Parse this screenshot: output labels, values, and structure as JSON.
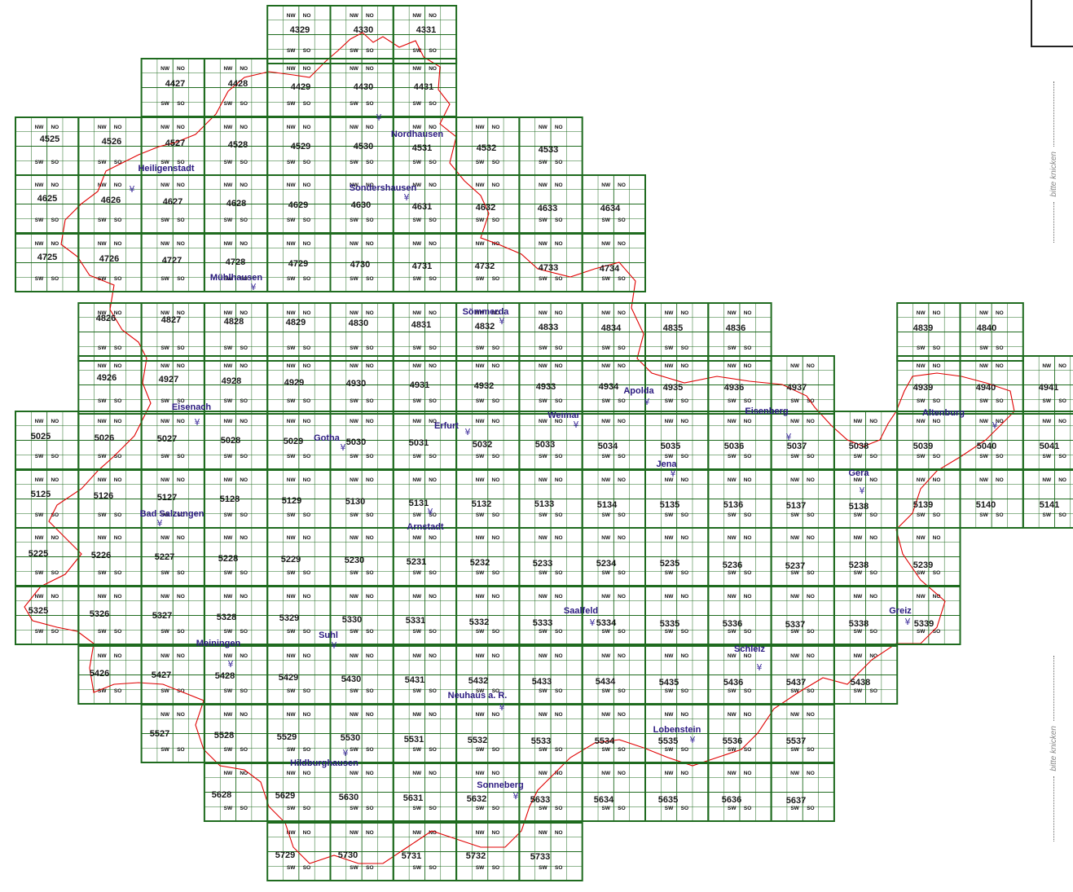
{
  "fold_label": "bitte knicken",
  "quadrant_labels": {
    "nw": "NW",
    "no": "NO",
    "sw": "SW",
    "so": "SO"
  },
  "colors": {
    "grid": "#1f6b1f",
    "border": "#e00000",
    "city_text": "#2b1a80",
    "sheet_text": "#1a1a1a"
  },
  "city_icon": "tower-icon",
  "sheets": [
    "4329",
    "4330",
    "4331",
    "4427",
    "4428",
    "4429",
    "4430",
    "4431",
    "4525",
    "4526",
    "4527",
    "4528",
    "4529",
    "4530",
    "4531",
    "4532",
    "4533",
    "4625",
    "4626",
    "4627",
    "4628",
    "4629",
    "4630",
    "4631",
    "4632",
    "4633",
    "4634",
    "4725",
    "4726",
    "4727",
    "4728",
    "4729",
    "4730",
    "4731",
    "4732",
    "4733",
    "4734",
    "4826",
    "4827",
    "4828",
    "4829",
    "4830",
    "4831",
    "4832",
    "4833",
    "4834",
    "4835",
    "4836",
    "4839",
    "4840",
    "4926",
    "4927",
    "4928",
    "4929",
    "4930",
    "4931",
    "4932",
    "4933",
    "4934",
    "4935",
    "4936",
    "4937",
    "4939",
    "4940",
    "4941",
    "5025",
    "5026",
    "5027",
    "5028",
    "5029",
    "5030",
    "5031",
    "5032",
    "5033",
    "5034",
    "5035",
    "5036",
    "5037",
    "5038",
    "5039",
    "5040",
    "5041",
    "5125",
    "5126",
    "5127",
    "5128",
    "5129",
    "5130",
    "5131",
    "5132",
    "5133",
    "5134",
    "5135",
    "5136",
    "5137",
    "5138",
    "5139",
    "5140",
    "5141",
    "5225",
    "5226",
    "5227",
    "5228",
    "5229",
    "5230",
    "5231",
    "5232",
    "5233",
    "5234",
    "5235",
    "5236",
    "5237",
    "5238",
    "5239",
    "5325",
    "5326",
    "5327",
    "5328",
    "5329",
    "5330",
    "5331",
    "5332",
    "5333",
    "5334",
    "5335",
    "5336",
    "5337",
    "5338",
    "5339",
    "5426",
    "5427",
    "5428",
    "5429",
    "5430",
    "5431",
    "5432",
    "5433",
    "5434",
    "5435",
    "5436",
    "5437",
    "5438",
    "5527",
    "5528",
    "5529",
    "5530",
    "5531",
    "5532",
    "5533",
    "5534",
    "5535",
    "5536",
    "5537",
    "5628",
    "5629",
    "5630",
    "5631",
    "5632",
    "5633",
    "5634",
    "5635",
    "5636",
    "5637",
    "5729",
    "5730",
    "5731",
    "5732",
    "5733"
  ],
  "cities": [
    "Nordhausen",
    "Heiligenstadt",
    "Sondershausen",
    "Mühlhausen",
    "Sömmerda",
    "Eisenach",
    "Gotha",
    "Erfurt",
    "Weimar",
    "Apolda",
    "Eisenberg",
    "Altenburg",
    "Jena",
    "Gera",
    "Bad Salzungen",
    "Arnstadt",
    "Saalfeld",
    "Greiz",
    "Suhl",
    "Meiningen",
    "Schleiz",
    "Neuhaus a. R.",
    "Lobenstein",
    "Hildburghausen",
    "Sonneberg"
  ]
}
